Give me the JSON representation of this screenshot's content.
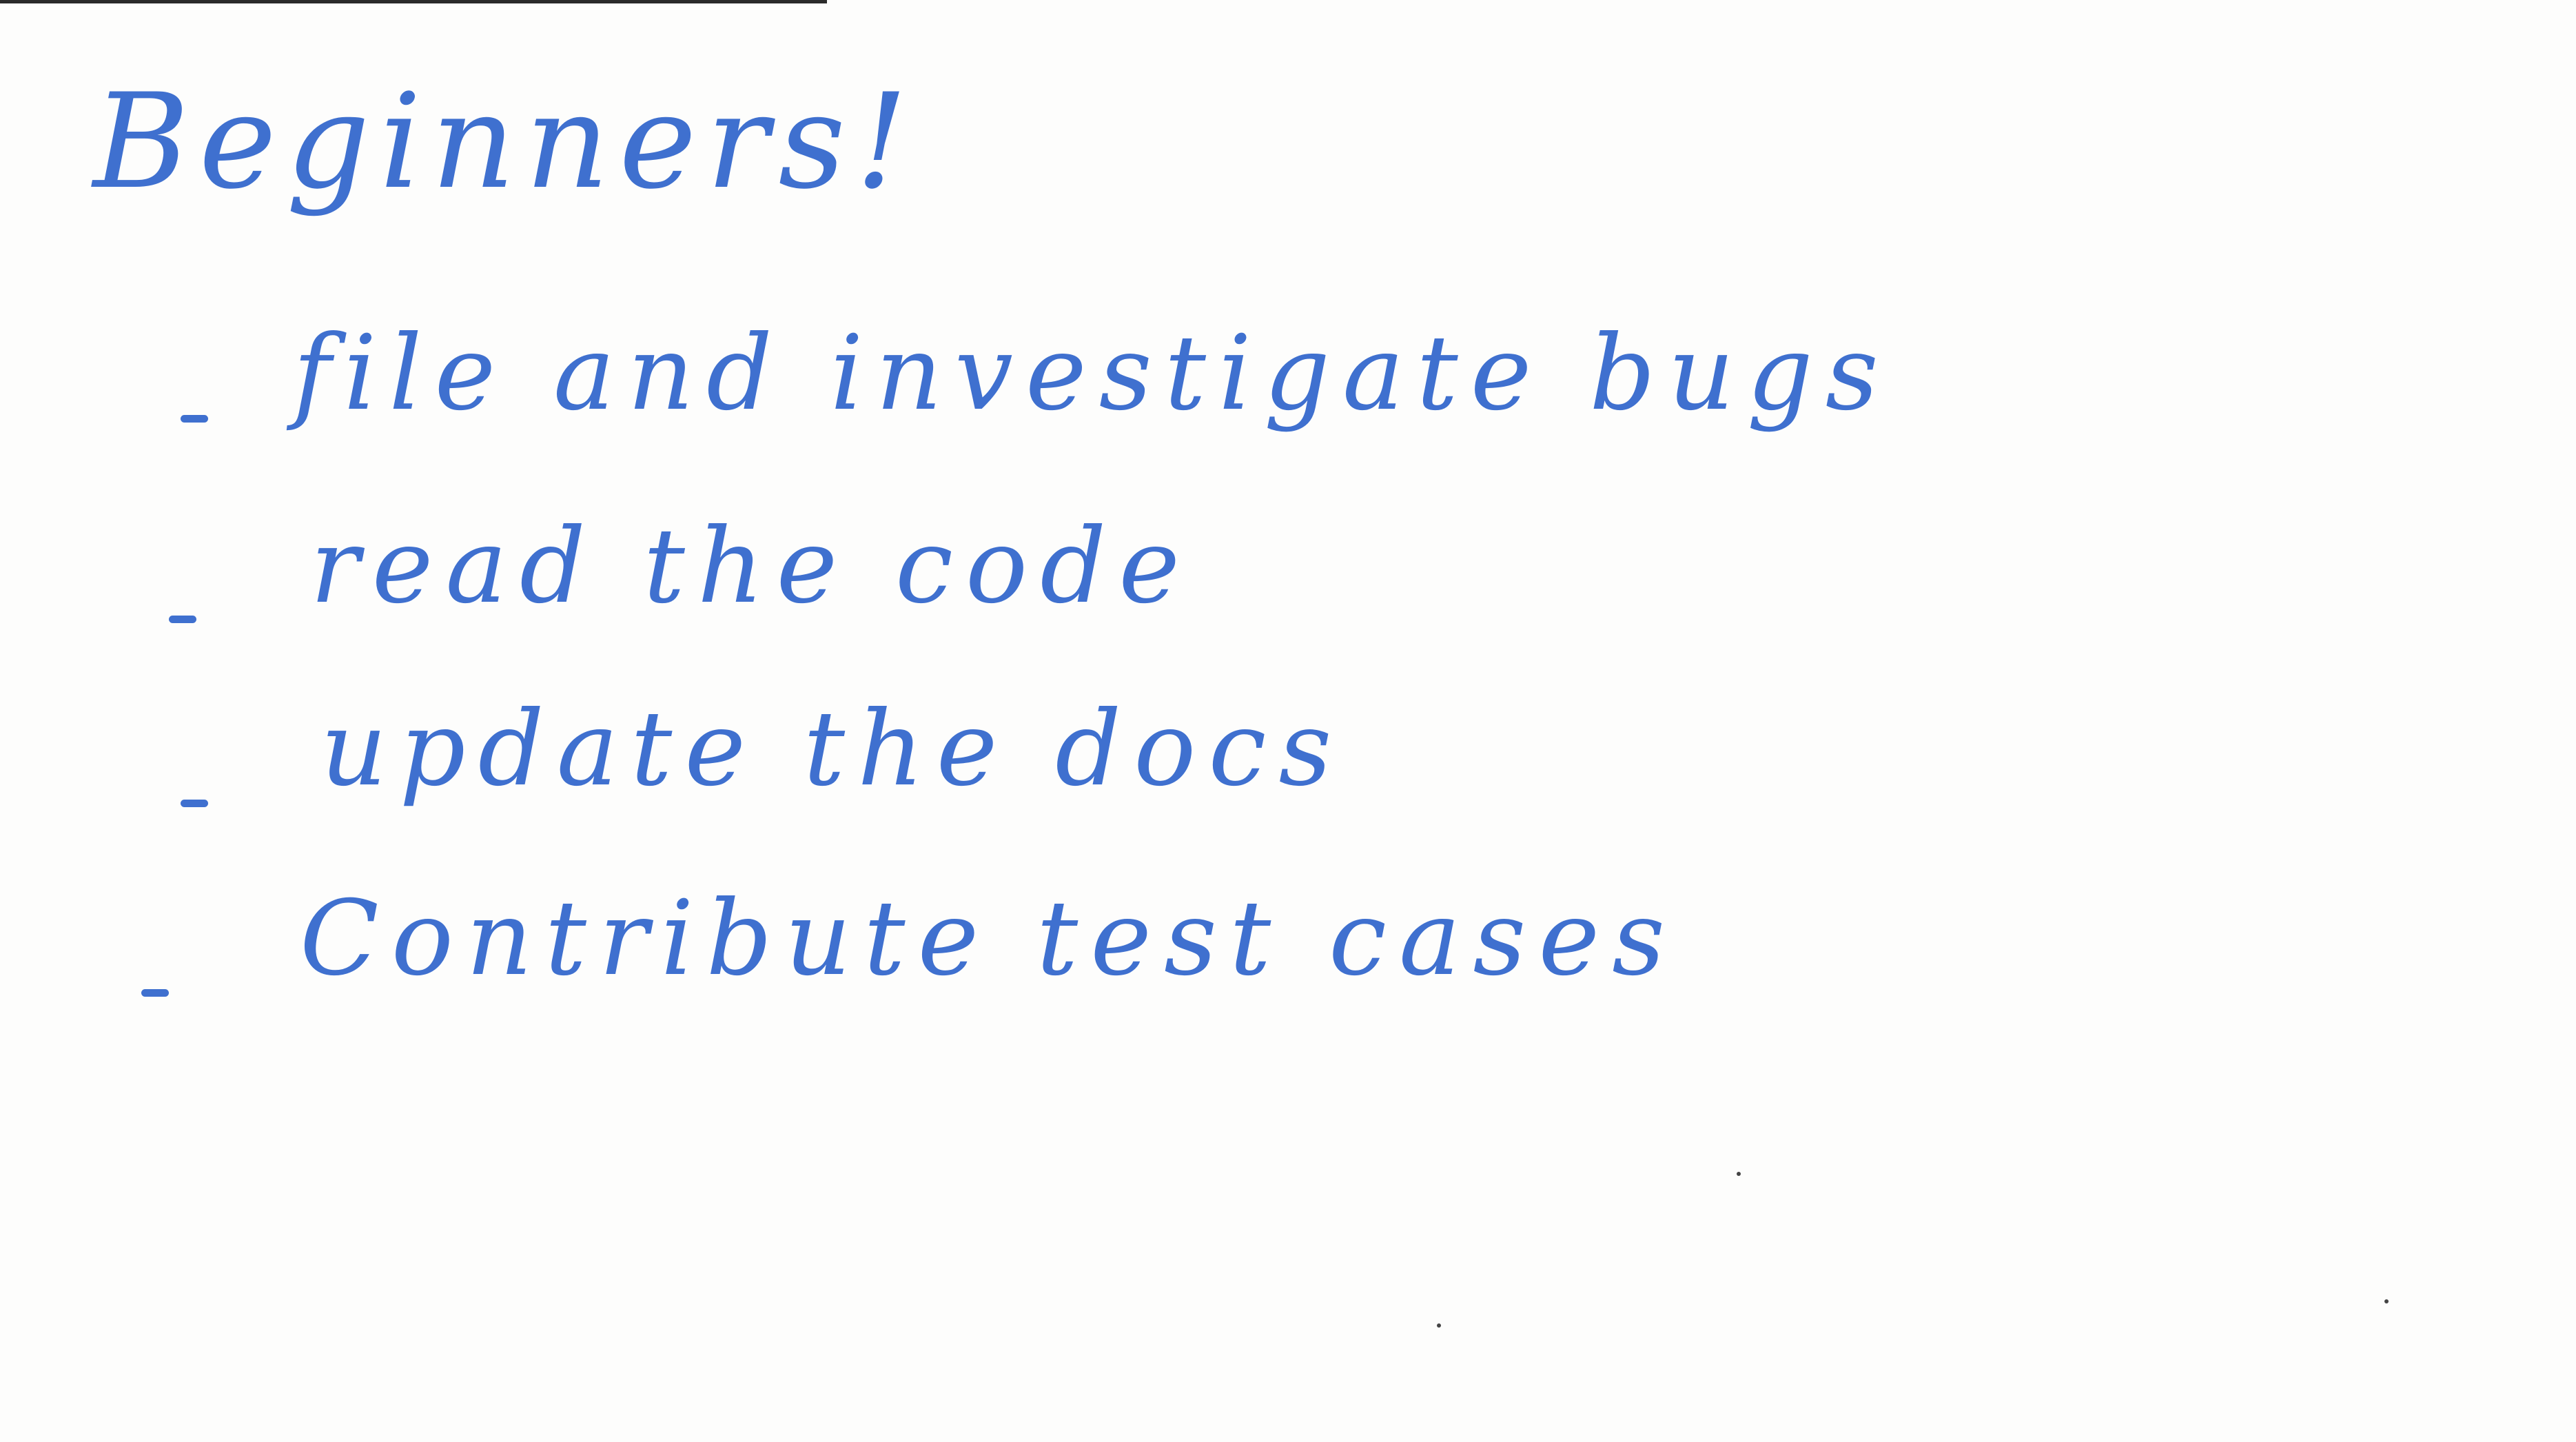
{
  "card": {
    "title": "Beginners!",
    "items": [
      "file and investigate bugs",
      "read the code",
      "update the docs",
      "Contribute test cases"
    ],
    "ink_color": "#3f70cf",
    "paper_color": "#fdfdfc"
  }
}
